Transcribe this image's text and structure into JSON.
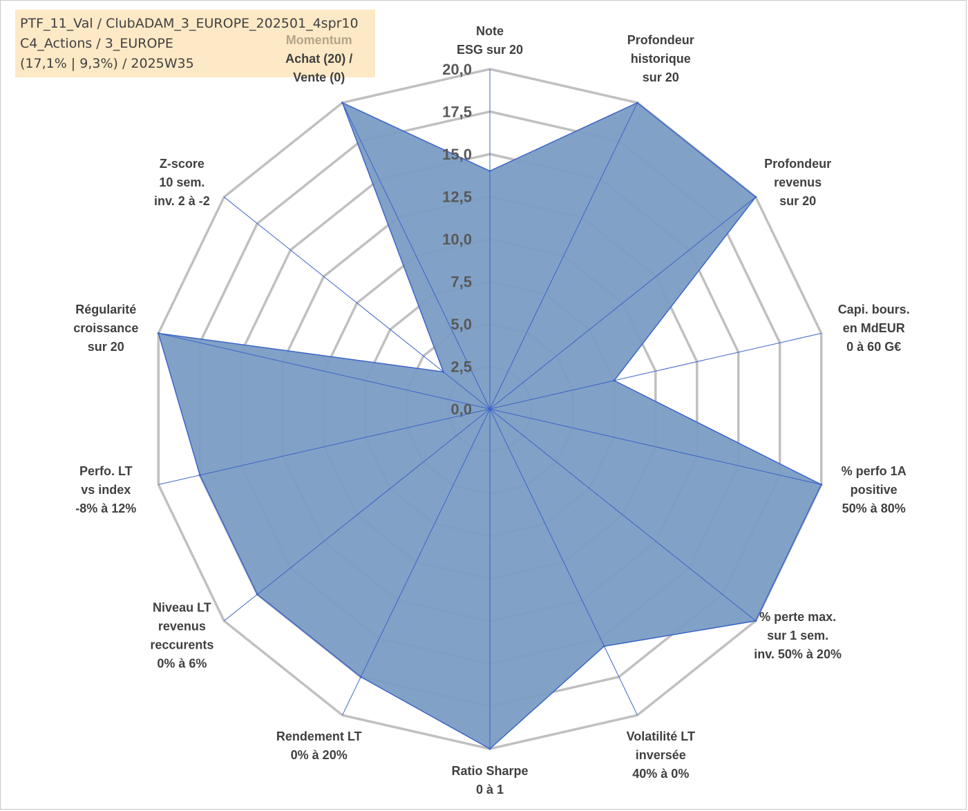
{
  "info": {
    "line1": "PTF_11_Val / ClubADAM_3_EUROPE_202501_4spr10",
    "line2": "C4_Actions / 3_EUROPE",
    "line3": "(17,1% | 9,3%) / 2025W35"
  },
  "colors": {
    "fill": "#7a9cc4",
    "stroke": "#3c64c8",
    "grid": "#c0c0c0",
    "accent_label": "#b5a48a"
  },
  "chart_data": {
    "type": "radar",
    "r_range": [
      0,
      20
    ],
    "r_ticks": [
      "0,0",
      "2,5",
      "5,0",
      "7,5",
      "10,0",
      "12,5",
      "15,0",
      "17,5",
      "20,0"
    ],
    "r_tick_values": [
      0,
      2.5,
      5,
      7.5,
      10,
      12.5,
      15,
      17.5,
      20
    ],
    "grid": true,
    "axes": [
      {
        "label": [
          "Note",
          "ESG sur 20"
        ],
        "value": 14
      },
      {
        "label": [
          "Profondeur",
          "historique",
          "sur 20"
        ],
        "value": 20
      },
      {
        "label": [
          "Profondeur",
          "revenus",
          "sur 20"
        ],
        "value": 20
      },
      {
        "label": [
          "Capi. bours.",
          "en MdEUR",
          "0 à 60 G€"
        ],
        "value": 7.5
      },
      {
        "label": [
          "% perfo 1A",
          "positive",
          "50% à 80%"
        ],
        "value": 20
      },
      {
        "label": [
          "% perte max.",
          "sur 1 sem.",
          "inv. 50% à 20%"
        ],
        "value": 20
      },
      {
        "label": [
          "Volatilité LT",
          "inversée",
          "40% à 0%"
        ],
        "value": 15.5
      },
      {
        "label": [
          "Ratio Sharpe",
          "0 à 1"
        ],
        "value": 20
      },
      {
        "label": [
          "Rendement LT",
          "0% à 20%"
        ],
        "value": 17.5
      },
      {
        "label": [
          "Niveau LT",
          "revenus",
          "reccurents",
          "0% à 6%"
        ],
        "value": 17.5
      },
      {
        "label": [
          "Perfo. LT",
          "vs index",
          "-8% à 12%"
        ],
        "value": 17.5
      },
      {
        "label": [
          "Régularité",
          "croissance",
          "sur 20"
        ],
        "value": 20
      },
      {
        "label": [
          "Z-score",
          "10 sem.",
          "inv. 2 à -2"
        ],
        "value": 3.5
      },
      {
        "label": [
          "Momentum",
          "Achat (20) /",
          "Vente (0)"
        ],
        "accent_first_line": true,
        "value": 20
      }
    ]
  }
}
